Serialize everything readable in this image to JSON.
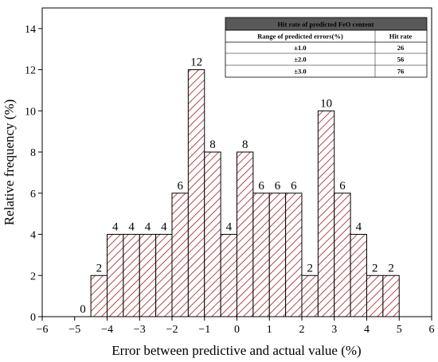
{
  "chart_data": {
    "type": "bar",
    "xlabel": "Error between predictive and actual value (%)",
    "ylabel": "Relative frequency (%)",
    "xlim": [
      -6,
      6
    ],
    "ylim": [
      0,
      15
    ],
    "x_ticks": [
      -6,
      -5,
      -4,
      -3,
      -2,
      -1,
      0,
      1,
      2,
      3,
      4,
      5,
      6
    ],
    "y_ticks": [
      0,
      2,
      4,
      6,
      8,
      10,
      12,
      14
    ],
    "bin_width": 0.5,
    "bins": [
      {
        "start": -5.0,
        "value": 0
      },
      {
        "start": -4.5,
        "value": 2
      },
      {
        "start": -4.0,
        "value": 4
      },
      {
        "start": -3.5,
        "value": 4
      },
      {
        "start": -3.0,
        "value": 4
      },
      {
        "start": -2.5,
        "value": 4
      },
      {
        "start": -2.0,
        "value": 6
      },
      {
        "start": -1.5,
        "value": 12
      },
      {
        "start": -1.0,
        "value": 8
      },
      {
        "start": -0.5,
        "value": 4
      },
      {
        "start": 0.0,
        "value": 8
      },
      {
        "start": 0.5,
        "value": 6
      },
      {
        "start": 1.0,
        "value": 6
      },
      {
        "start": 1.5,
        "value": 6
      },
      {
        "start": 2.0,
        "value": 2
      },
      {
        "start": 2.5,
        "value": 10
      },
      {
        "start": 3.0,
        "value": 6
      },
      {
        "start": 3.5,
        "value": 4
      },
      {
        "start": 4.0,
        "value": 2
      },
      {
        "start": 4.5,
        "value": 2
      }
    ],
    "bar_color": "#a01c1c",
    "hatch": "diagonal",
    "table": {
      "title": "Hit rate of predicted FeO content",
      "headers": [
        "Range of predicted errors(%)",
        "Hit rate"
      ],
      "rows": [
        [
          "±1.0",
          "26"
        ],
        [
          "±2.0",
          "56"
        ],
        [
          "±3.0",
          "76"
        ]
      ]
    }
  }
}
